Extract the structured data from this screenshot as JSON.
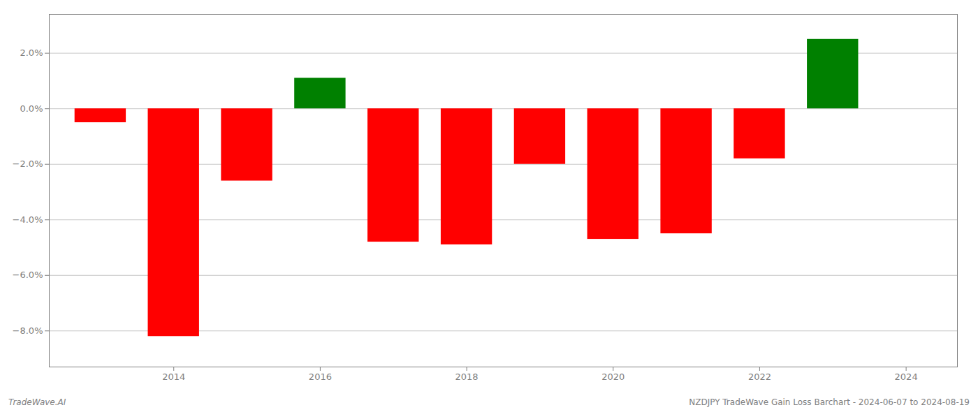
{
  "chart_data": {
    "type": "bar",
    "x": [
      2013,
      2014,
      2015,
      2016,
      2017,
      2018,
      2019,
      2020,
      2021,
      2022,
      2023
    ],
    "values": [
      -0.005,
      -0.082,
      -0.026,
      0.011,
      -0.048,
      -0.049,
      -0.02,
      -0.047,
      -0.045,
      -0.018,
      0.025
    ],
    "colors": [
      "#ff0000",
      "#ff0000",
      "#ff0000",
      "#008000",
      "#ff0000",
      "#ff0000",
      "#ff0000",
      "#ff0000",
      "#ff0000",
      "#ff0000",
      "#008000"
    ],
    "ylim": [
      -0.093,
      0.034
    ],
    "yticks": [
      {
        "value": -0.08,
        "label": "−8.0%"
      },
      {
        "value": -0.06,
        "label": "−6.0%"
      },
      {
        "value": -0.04,
        "label": "−4.0%"
      },
      {
        "value": -0.02,
        "label": "−2.0%"
      },
      {
        "value": 0.0,
        "label": "0.0%"
      },
      {
        "value": 0.02,
        "label": "2.0%"
      }
    ],
    "xlim": [
      2012.3,
      2024.7
    ],
    "xticks": [
      2014,
      2016,
      2018,
      2020,
      2022,
      2024
    ],
    "grid": true,
    "annotations": [
      "TradeWave.AI",
      "NZDJPY TradeWave Gain Loss Barchart - 2024-06-07 to 2024-08-19"
    ]
  }
}
